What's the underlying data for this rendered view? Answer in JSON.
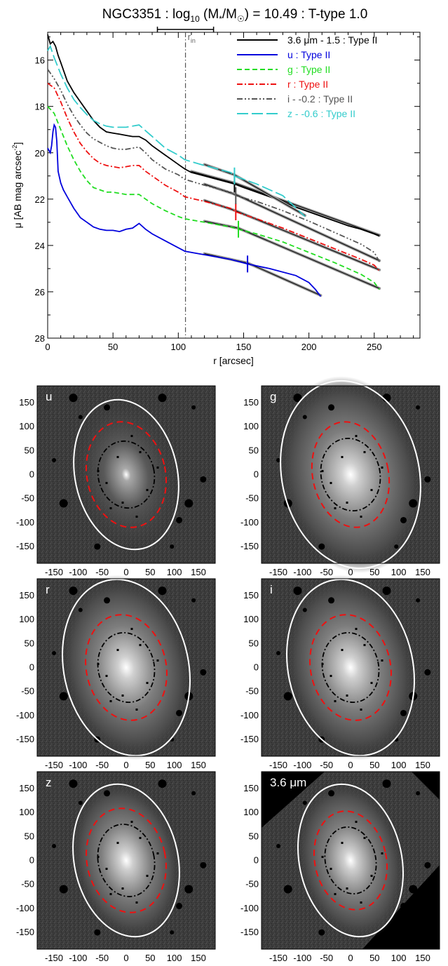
{
  "chart_data": [
    {
      "type": "line",
      "title": "NGC3351 : log10 (M*/M☉) = 10.49 : T-type 1.0",
      "title_parts": {
        "a": "NGC3351 : log",
        "sub": "10",
        "b": " (M",
        "star": "*",
        "c": "/M",
        "sun": "☉",
        "d": ") = 10.49 : T-type 1.0"
      },
      "xlabel": "r [arcsec]",
      "ylabel": "μ [AB mag arcsec⁻²]",
      "xlim": [
        0,
        285
      ],
      "ylim": [
        28,
        14.8
      ],
      "y_inverted": true,
      "xticks": [
        0,
        50,
        100,
        150,
        200,
        250
      ],
      "yticks": [
        16,
        18,
        20,
        22,
        24,
        26,
        28
      ],
      "r_in": {
        "label": "rin",
        "label_main": "r",
        "label_sub": "in",
        "value": 105.5,
        "range": [
          84,
          127
        ]
      },
      "legend_position": "top-right",
      "series": [
        {
          "name": "3.6 μm - 1.5 : Type II",
          "color": "#000000",
          "style": "solid",
          "x": [
            0,
            2,
            4,
            6,
            8,
            10,
            15,
            20,
            25,
            30,
            35,
            40,
            45,
            50,
            55,
            60,
            65,
            70,
            75,
            80,
            85,
            90,
            95,
            100,
            105,
            110,
            120,
            130,
            140,
            143,
            150,
            160,
            170,
            180,
            190,
            200,
            210,
            220,
            230,
            240,
            250,
            254
          ],
          "y": [
            14.9,
            15.3,
            15.2,
            15.4,
            15.8,
            16.1,
            16.9,
            17.4,
            17.8,
            18.2,
            18.6,
            18.9,
            19.1,
            19.15,
            19.2,
            19.25,
            19.3,
            19.3,
            19.45,
            19.7,
            19.9,
            20.1,
            20.3,
            20.5,
            20.7,
            20.85,
            21.0,
            21.15,
            21.3,
            21.35,
            21.5,
            21.7,
            21.9,
            22.1,
            22.35,
            22.55,
            22.75,
            22.95,
            23.15,
            23.3,
            23.5,
            23.6
          ],
          "break_r": 143
        },
        {
          "name": "u : Type II",
          "color": "#0000dd",
          "style": "solid",
          "x": [
            0,
            2,
            3,
            4,
            5,
            6,
            7,
            8,
            10,
            12,
            15,
            20,
            25,
            30,
            35,
            40,
            45,
            50,
            55,
            60,
            65,
            70,
            75,
            80,
            90,
            100,
            105,
            120,
            140,
            153,
            170,
            190,
            200,
            205,
            209
          ],
          "y": [
            19.8,
            20.0,
            19.7,
            19.1,
            18.8,
            18.9,
            19.5,
            20.8,
            21.3,
            21.6,
            21.9,
            22.4,
            22.8,
            23.0,
            23.2,
            23.3,
            23.35,
            23.35,
            23.4,
            23.3,
            23.25,
            23.05,
            23.3,
            23.5,
            23.8,
            24.1,
            24.25,
            24.4,
            24.6,
            24.8,
            25.0,
            25.3,
            25.6,
            25.9,
            26.2
          ],
          "break_r": 153
        },
        {
          "name": "g : Type II",
          "color": "#22dd22",
          "style": "dashed",
          "x": [
            0,
            5,
            10,
            15,
            20,
            25,
            30,
            35,
            40,
            45,
            50,
            55,
            60,
            65,
            70,
            75,
            80,
            90,
            100,
            105,
            120,
            140,
            146,
            160,
            180,
            200,
            220,
            240,
            250,
            254
          ],
          "y": [
            18.0,
            18.3,
            19.0,
            19.7,
            20.3,
            20.8,
            21.2,
            21.5,
            21.6,
            21.7,
            21.7,
            21.75,
            21.8,
            21.8,
            21.8,
            22.0,
            22.2,
            22.5,
            22.75,
            22.85,
            23.0,
            23.2,
            23.3,
            23.5,
            23.85,
            24.3,
            24.75,
            25.25,
            25.6,
            25.9
          ],
          "break_r": 146
        },
        {
          "name": "r : Type II",
          "color": "#ee1111",
          "style": "dashdot",
          "x": [
            0,
            5,
            10,
            15,
            20,
            25,
            30,
            35,
            40,
            45,
            50,
            55,
            60,
            65,
            70,
            75,
            80,
            90,
            100,
            105,
            120,
            140,
            144,
            160,
            180,
            200,
            220,
            240,
            250,
            254
          ],
          "y": [
            17.0,
            17.2,
            17.8,
            18.5,
            19.1,
            19.6,
            19.95,
            20.25,
            20.45,
            20.55,
            20.6,
            20.65,
            20.6,
            20.55,
            20.55,
            20.8,
            21.0,
            21.4,
            21.7,
            21.9,
            22.1,
            22.4,
            22.55,
            22.85,
            23.25,
            23.7,
            24.15,
            24.6,
            24.85,
            25.1
          ],
          "break_r": 144
        },
        {
          "name": "i - -0.2 : Type II",
          "color": "#555555",
          "style": "dashdotdot",
          "x": [
            0,
            5,
            10,
            15,
            20,
            25,
            30,
            35,
            40,
            45,
            50,
            55,
            60,
            65,
            70,
            75,
            80,
            90,
            100,
            105,
            120,
            140,
            144,
            160,
            180,
            200,
            220,
            240,
            250,
            254
          ],
          "y": [
            16.4,
            16.8,
            17.3,
            17.9,
            18.4,
            18.8,
            19.15,
            19.4,
            19.55,
            19.7,
            19.8,
            19.85,
            19.85,
            19.8,
            19.75,
            20.0,
            20.3,
            20.7,
            20.95,
            21.15,
            21.4,
            21.7,
            21.85,
            22.1,
            22.5,
            22.95,
            23.45,
            23.95,
            24.3,
            24.7
          ],
          "break_r": 144
        },
        {
          "name": "z - -0.6 : Type II",
          "color": "#33cccc",
          "style": "longdash",
          "x": [
            0,
            2,
            5,
            10,
            15,
            20,
            25,
            30,
            35,
            40,
            45,
            50,
            55,
            60,
            65,
            70,
            75,
            80,
            90,
            100,
            105,
            120,
            140,
            143,
            160,
            180,
            197
          ],
          "y": [
            15.6,
            15.4,
            15.9,
            16.6,
            17.2,
            17.7,
            18.05,
            18.35,
            18.6,
            18.75,
            18.85,
            18.9,
            18.9,
            18.9,
            18.85,
            18.8,
            19.05,
            19.3,
            19.8,
            20.1,
            20.3,
            20.55,
            20.85,
            21.0,
            21.35,
            21.85,
            22.75
          ],
          "break_r": 143
        }
      ]
    },
    {
      "type": "image",
      "panels": [
        {
          "label": "u"
        },
        {
          "label": "g"
        },
        {
          "label": "r"
        },
        {
          "label": "i"
        },
        {
          "label": "z"
        },
        {
          "label": "3.6 μm"
        }
      ],
      "xticks": [
        "-150",
        "-100",
        "-50",
        "0",
        "50",
        "100",
        "150"
      ],
      "xtick_values": [
        -150,
        -100,
        -50,
        0,
        50,
        100,
        150
      ],
      "yticks": [
        "150",
        "100",
        "50",
        "0",
        "-50",
        "-100",
        "-150"
      ],
      "ytick_values": [
        150,
        100,
        50,
        0,
        -50,
        -100,
        -150
      ],
      "xlim": [
        -185,
        185
      ],
      "ylim": [
        -185,
        185
      ],
      "ellipse_colors": {
        "outer": "#ffffff",
        "break": "#ee1111",
        "inner": "#000000"
      }
    }
  ]
}
